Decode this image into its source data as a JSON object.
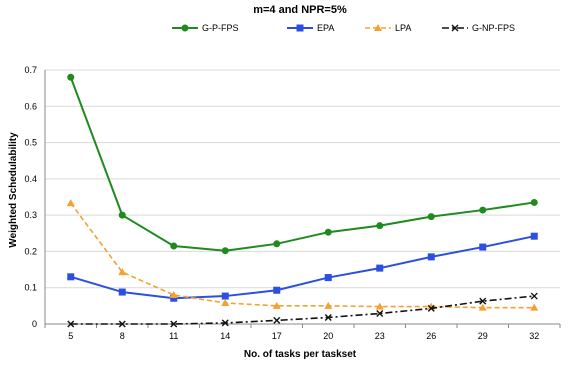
{
  "chart_data": {
    "type": "line",
    "title": "m=4 and NPR=5%",
    "xlabel": "No. of tasks per taskset",
    "ylabel": "Weighted Schedulability",
    "categories": [
      "5",
      "8",
      "11",
      "14",
      "17",
      "20",
      "23",
      "26",
      "29",
      "32"
    ],
    "ylim": [
      0,
      0.7
    ],
    "yticks": [
      "0",
      "0.1",
      "0.2",
      "0.3",
      "0.4",
      "0.5",
      "0.6",
      "0.7"
    ],
    "grid": true,
    "legend_position": "top",
    "series": [
      {
        "name": "G-P-FPS",
        "color": "#1f8b1f",
        "marker": "circle",
        "dash": "solid",
        "values": [
          0.68,
          0.3,
          0.215,
          0.202,
          0.221,
          0.253,
          0.271,
          0.296,
          0.314,
          0.335
        ]
      },
      {
        "name": "EPA",
        "color": "#2b4fe0",
        "marker": "square",
        "dash": "solid",
        "values": [
          0.13,
          0.088,
          0.071,
          0.077,
          0.093,
          0.128,
          0.154,
          0.185,
          0.212,
          0.242
        ]
      },
      {
        "name": "LPA",
        "color": "#f5a030",
        "marker": "triangle",
        "dash": "dashed",
        "values": [
          0.333,
          0.143,
          0.08,
          0.058,
          0.05,
          0.05,
          0.048,
          0.048,
          0.045,
          0.045
        ]
      },
      {
        "name": "G-NP-FPS",
        "color": "#111111",
        "marker": "x",
        "dash": "dashdot",
        "values": [
          0.0,
          0.0,
          0.0,
          0.003,
          0.01,
          0.018,
          0.029,
          0.043,
          0.063,
          0.077
        ]
      }
    ]
  }
}
